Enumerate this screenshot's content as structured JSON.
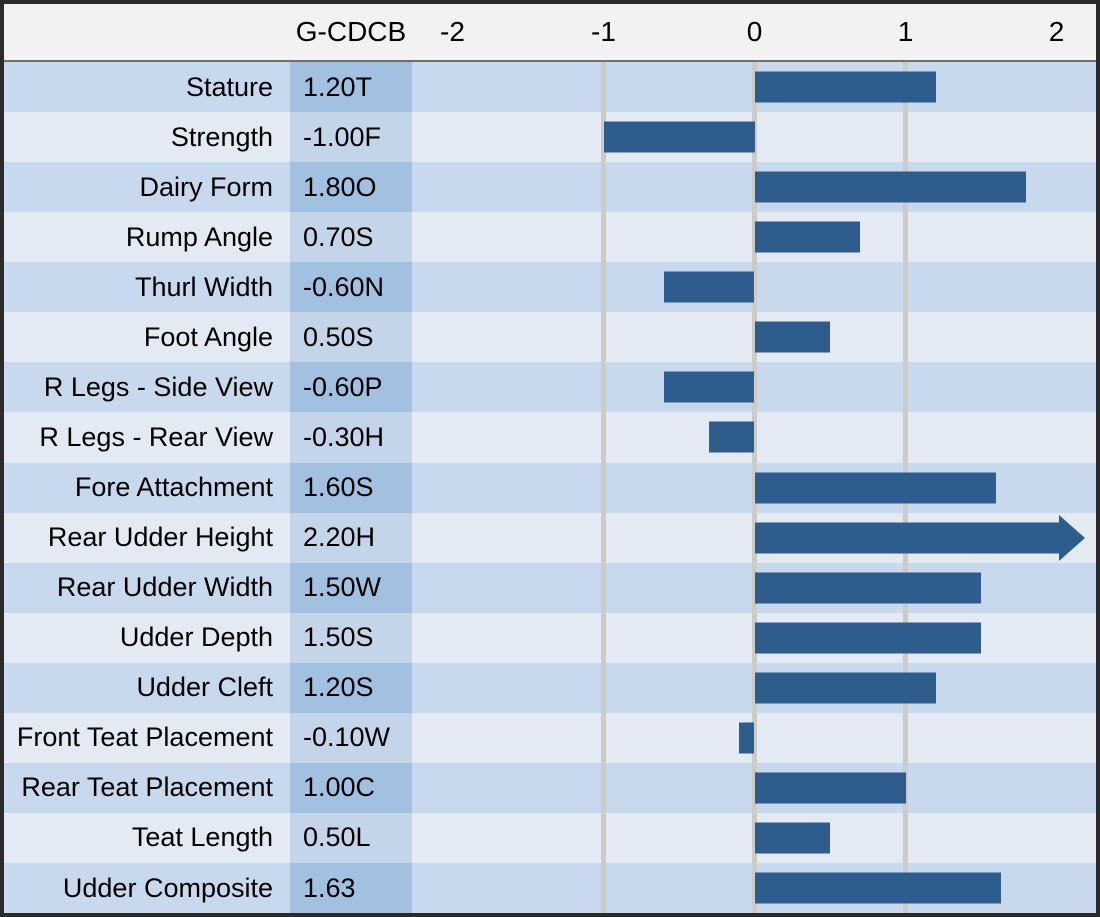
{
  "header": {
    "column_label": "G-CDCB"
  },
  "axis": {
    "ticks": [
      {
        "label": "-2",
        "value": -2
      },
      {
        "label": "-1",
        "value": -1
      },
      {
        "label": "0",
        "value": 0
      },
      {
        "label": "1",
        "value": 1
      },
      {
        "label": "2",
        "value": 2
      }
    ],
    "gridlines_at": [
      -1,
      0,
      1
    ]
  },
  "rows": [
    {
      "label": "Stature",
      "value": "1.20T",
      "num": 1.2,
      "overflow": false
    },
    {
      "label": "Strength",
      "value": "-1.00F",
      "num": -1.0,
      "overflow": false
    },
    {
      "label": "Dairy Form",
      "value": "1.80O",
      "num": 1.8,
      "overflow": false
    },
    {
      "label": "Rump Angle",
      "value": "0.70S",
      "num": 0.7,
      "overflow": false
    },
    {
      "label": "Thurl Width",
      "value": "-0.60N",
      "num": -0.6,
      "overflow": false
    },
    {
      "label": "Foot Angle",
      "value": "0.50S",
      "num": 0.5,
      "overflow": false
    },
    {
      "label": "R Legs - Side View",
      "value": "-0.60P",
      "num": -0.6,
      "overflow": false
    },
    {
      "label": "R Legs - Rear View",
      "value": "-0.30H",
      "num": -0.3,
      "overflow": false
    },
    {
      "label": "Fore Attachment",
      "value": "1.60S",
      "num": 1.6,
      "overflow": false
    },
    {
      "label": "Rear Udder Height",
      "value": "2.20H",
      "num": 2.2,
      "overflow": true
    },
    {
      "label": "Rear Udder Width",
      "value": "1.50W",
      "num": 1.5,
      "overflow": false
    },
    {
      "label": "Udder Depth",
      "value": "1.50S",
      "num": 1.5,
      "overflow": false
    },
    {
      "label": "Udder Cleft",
      "value": "1.20S",
      "num": 1.2,
      "overflow": false
    },
    {
      "label": "Front Teat Placement",
      "value": "-0.10W",
      "num": -0.1,
      "overflow": false
    },
    {
      "label": "Rear Teat Placement",
      "value": "1.00C",
      "num": 1.0,
      "overflow": false
    },
    {
      "label": "Teat Length",
      "value": "0.50L",
      "num": 0.5,
      "overflow": false
    },
    {
      "label": "Udder Composite",
      "value": "1.63",
      "num": 1.63,
      "overflow": false
    }
  ],
  "chart_data": {
    "type": "bar",
    "orientation": "horizontal",
    "title": "",
    "xlabel": "",
    "ylabel": "",
    "value_column_header": "G-CDCB",
    "categories": [
      "Stature",
      "Strength",
      "Dairy Form",
      "Rump Angle",
      "Thurl Width",
      "Foot Angle",
      "R Legs - Side View",
      "R Legs - Rear View",
      "Fore Attachment",
      "Rear Udder Height",
      "Rear Udder Width",
      "Udder Depth",
      "Udder Cleft",
      "Front Teat Placement",
      "Rear Teat Placement",
      "Teat Length",
      "Udder Composite"
    ],
    "values": [
      1.2,
      -1.0,
      1.8,
      0.7,
      -0.6,
      0.5,
      -0.6,
      -0.3,
      1.6,
      2.2,
      1.5,
      1.5,
      1.2,
      -0.1,
      1.0,
      0.5,
      1.63
    ],
    "data_labels": [
      "1.20T",
      "-1.00F",
      "1.80O",
      "0.70S",
      "-0.60N",
      "0.50S",
      "-0.60P",
      "-0.30H",
      "1.60S",
      "2.20H",
      "1.50W",
      "1.50S",
      "1.20S",
      "-0.10W",
      "1.00C",
      "0.50L",
      "1.63"
    ],
    "xlim": [
      -2.27,
      2.27
    ],
    "xticks": [
      -2,
      -1,
      0,
      1,
      2
    ],
    "gridlines_at": [
      -1,
      0,
      1
    ],
    "grid": "vertical-major-only",
    "legend": "none",
    "overflow_arrow_category": "Rear Udder Height",
    "bar_color": "#2e5c8c",
    "row_band_dark": "#c8d9ed",
    "row_band_light": "#e3eaf4",
    "value_cell_dark": "#a2c0df",
    "value_cell_light": "#c4d5e9",
    "gridline_color": "#cdcbc6",
    "header_background": "#f2f2f2",
    "outer_border_color": "#2b2b2b"
  },
  "colors": {
    "bar": "#2e5c8c",
    "row_dark": "#c8d9ed",
    "row_light": "#e3eaf4",
    "val_dark": "#a2c0df",
    "val_light": "#c4d5e9",
    "grid": "#cdcbc6",
    "header_bg": "#f2f2f2",
    "border": "#2b2b2b",
    "header_line": "#707070"
  }
}
